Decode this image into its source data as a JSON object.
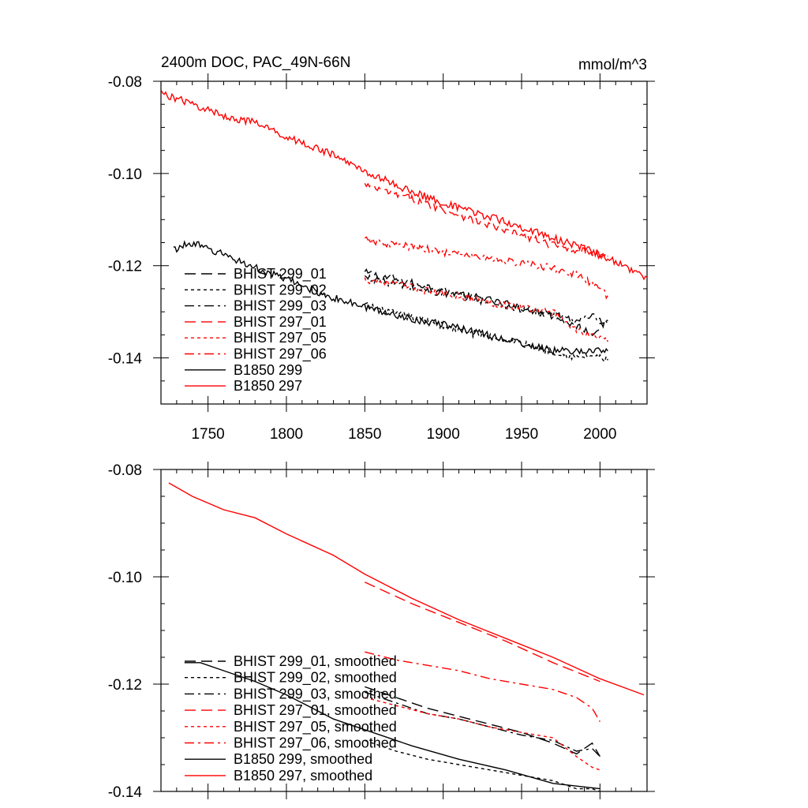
{
  "header": {
    "title": "2400m DOC, PAC_49N-66N",
    "units": "mmol/m^3"
  },
  "colors": {
    "black": "#000000",
    "red": "#ff0000"
  },
  "chart_data": [
    {
      "type": "line",
      "xlim": [
        1720,
        2030
      ],
      "ylim": [
        -0.15,
        -0.08
      ],
      "x_ticks": [
        "1750",
        "1800",
        "1850",
        "1900",
        "1950",
        "2000"
      ],
      "y_ticks": [
        "-0.08",
        "-0.10",
        "-0.12",
        "-0.14"
      ],
      "legend_position": "lower-left",
      "series": [
        {
          "name": "BHIST 299_01",
          "color": "black",
          "dash": "long-dash",
          "x": [
            1850,
            1870,
            1890,
            1910,
            1930,
            1950,
            1970,
            1985,
            1995,
            2005
          ],
          "y": [
            -0.1215,
            -0.123,
            -0.1245,
            -0.126,
            -0.1275,
            -0.129,
            -0.131,
            -0.133,
            -0.1345,
            -0.132
          ]
        },
        {
          "name": "BHIST 299_02",
          "color": "black",
          "dash": "short-dash",
          "x": [
            1850,
            1870,
            1890,
            1910,
            1930,
            1950,
            1970,
            1985,
            1995,
            2005
          ],
          "y": [
            -0.1285,
            -0.1305,
            -0.132,
            -0.134,
            -0.1355,
            -0.137,
            -0.1385,
            -0.14,
            -0.1395,
            -0.1405
          ]
        },
        {
          "name": "BHIST 299_03",
          "color": "black",
          "dash": "dash-dot",
          "x": [
            1850,
            1870,
            1890,
            1910,
            1930,
            1950,
            1970,
            1985,
            1995,
            2005
          ],
          "y": [
            -0.1225,
            -0.124,
            -0.1255,
            -0.1265,
            -0.128,
            -0.1295,
            -0.1305,
            -0.132,
            -0.131,
            -0.133
          ]
        },
        {
          "name": "BHIST 297_01",
          "color": "red",
          "dash": "long-dash",
          "x": [
            1850,
            1880,
            1910,
            1940,
            1970,
            2005
          ],
          "y": [
            -0.1025,
            -0.1055,
            -0.109,
            -0.1125,
            -0.1155,
            -0.118
          ]
        },
        {
          "name": "BHIST 297_05",
          "color": "red",
          "dash": "short-dash",
          "x": [
            1850,
            1870,
            1890,
            1910,
            1930,
            1950,
            1970,
            1985,
            1995,
            2005
          ],
          "y": [
            -0.123,
            -0.124,
            -0.1255,
            -0.1265,
            -0.128,
            -0.129,
            -0.13,
            -0.134,
            -0.135,
            -0.1365
          ]
        },
        {
          "name": "BHIST 297_06",
          "color": "red",
          "dash": "dash-dot",
          "x": [
            1850,
            1870,
            1890,
            1910,
            1930,
            1950,
            1970,
            1985,
            1995,
            2005
          ],
          "y": [
            -0.1145,
            -0.1155,
            -0.1165,
            -0.1175,
            -0.1185,
            -0.1195,
            -0.1205,
            -0.122,
            -0.124,
            -0.1265
          ]
        },
        {
          "name": "B1850 299",
          "color": "black",
          "dash": "solid",
          "x": [
            1728,
            1740,
            1750,
            1760,
            1780,
            1800,
            1830,
            1850,
            1880,
            1910,
            1940,
            1970,
            2005
          ],
          "y": [
            -0.1165,
            -0.115,
            -0.1165,
            -0.1175,
            -0.1205,
            -0.123,
            -0.127,
            -0.129,
            -0.1315,
            -0.1335,
            -0.136,
            -0.1385,
            -0.1385
          ]
        },
        {
          "name": "B1850 297",
          "color": "red",
          "dash": "solid",
          "x": [
            1720,
            1740,
            1760,
            1780,
            1800,
            1830,
            1850,
            1880,
            1910,
            1940,
            1970,
            2000,
            2030
          ],
          "y": [
            -0.0825,
            -0.085,
            -0.0875,
            -0.089,
            -0.092,
            -0.096,
            -0.0995,
            -0.104,
            -0.1075,
            -0.1105,
            -0.114,
            -0.1175,
            -0.1225
          ]
        }
      ]
    },
    {
      "type": "line",
      "xlim": [
        1720,
        2030
      ],
      "ylim": [
        -0.14,
        -0.08
      ],
      "x_ticks": [],
      "y_ticks": [
        "-0.08",
        "-0.10",
        "-0.12",
        "-0.14"
      ],
      "legend_position": "lower-left",
      "series": [
        {
          "name": "BHIST 299_01, smoothed",
          "color": "black",
          "dash": "long-dash",
          "x": [
            1850,
            1870,
            1890,
            1910,
            1930,
            1950,
            1970,
            1985,
            1995,
            2000
          ],
          "y": [
            -0.1205,
            -0.1225,
            -0.1245,
            -0.126,
            -0.1275,
            -0.129,
            -0.131,
            -0.133,
            -0.131,
            -0.1335
          ]
        },
        {
          "name": "BHIST 299_02, smoothed",
          "color": "black",
          "dash": "short-dash",
          "x": [
            1850,
            1870,
            1890,
            1910,
            1930,
            1950,
            1970,
            1985,
            1995,
            2000
          ],
          "y": [
            -0.1305,
            -0.1325,
            -0.134,
            -0.135,
            -0.136,
            -0.137,
            -0.138,
            -0.1395,
            -0.1395,
            -0.14
          ]
        },
        {
          "name": "BHIST 299_03, smoothed",
          "color": "black",
          "dash": "dash-dot",
          "x": [
            1850,
            1870,
            1890,
            1910,
            1930,
            1950,
            1970,
            1985,
            1995,
            2000
          ],
          "y": [
            -0.1215,
            -0.1235,
            -0.1255,
            -0.1265,
            -0.128,
            -0.1295,
            -0.1305,
            -0.1325,
            -0.132,
            -0.1335
          ]
        },
        {
          "name": "BHIST 297_01, smoothed",
          "color": "red",
          "dash": "long-dash",
          "x": [
            1850,
            1880,
            1910,
            1940,
            1970,
            2000
          ],
          "y": [
            -0.101,
            -0.105,
            -0.1085,
            -0.112,
            -0.116,
            -0.1195
          ]
        },
        {
          "name": "BHIST 297_05, smoothed",
          "color": "red",
          "dash": "short-dash",
          "x": [
            1850,
            1870,
            1890,
            1910,
            1930,
            1950,
            1970,
            1985,
            1995,
            2000
          ],
          "y": [
            -0.1225,
            -0.124,
            -0.1255,
            -0.1265,
            -0.128,
            -0.129,
            -0.13,
            -0.1335,
            -0.1355,
            -0.136
          ]
        },
        {
          "name": "BHIST 297_06, smoothed",
          "color": "red",
          "dash": "dash-dot",
          "x": [
            1850,
            1870,
            1890,
            1910,
            1930,
            1950,
            1970,
            1985,
            1995,
            2000
          ],
          "y": [
            -0.114,
            -0.1155,
            -0.1165,
            -0.1175,
            -0.119,
            -0.12,
            -0.121,
            -0.1225,
            -0.1245,
            -0.127
          ]
        },
        {
          "name": "B1850 299, smoothed",
          "color": "black",
          "dash": "solid",
          "x": [
            1735,
            1745,
            1760,
            1780,
            1800,
            1830,
            1850,
            1880,
            1910,
            1940,
            1970,
            2000
          ],
          "y": [
            -0.116,
            -0.116,
            -0.1175,
            -0.1195,
            -0.122,
            -0.1265,
            -0.1285,
            -0.1315,
            -0.134,
            -0.136,
            -0.1385,
            -0.1395
          ]
        },
        {
          "name": "B1850 297, smoothed",
          "color": "red",
          "dash": "solid",
          "x": [
            1725,
            1740,
            1760,
            1780,
            1800,
            1830,
            1850,
            1880,
            1910,
            1940,
            1970,
            2000,
            2028
          ],
          "y": [
            -0.0825,
            -0.085,
            -0.0875,
            -0.089,
            -0.092,
            -0.096,
            -0.0995,
            -0.104,
            -0.108,
            -0.1115,
            -0.115,
            -0.119,
            -0.122
          ]
        }
      ]
    }
  ]
}
